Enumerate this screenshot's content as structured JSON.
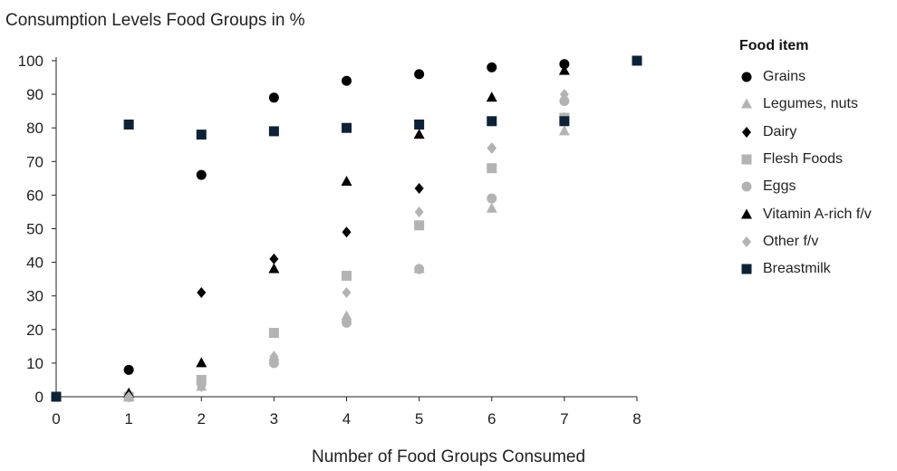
{
  "chart_data": {
    "type": "scatter",
    "title": "Consumption Levels Food Groups in %",
    "xlabel": "Number of Food Groups Consumed",
    "ylabel": "",
    "xlim": [
      0,
      8
    ],
    "ylim": [
      0,
      100
    ],
    "x_ticks": [
      "0",
      "1",
      "2",
      "3",
      "4",
      "5",
      "6",
      "7",
      "8"
    ],
    "y_ticks": [
      "0",
      "10",
      "20",
      "30",
      "40",
      "50",
      "60",
      "70",
      "80",
      "90",
      "100"
    ],
    "grid": false,
    "legend_title": "Food item",
    "legend_position": "right",
    "series": [
      {
        "name": "Grains",
        "marker": "circle",
        "color": "#000000",
        "x": [
          1,
          2,
          3,
          4,
          5,
          6,
          7
        ],
        "y": [
          8,
          66,
          89,
          94,
          96,
          98,
          99
        ]
      },
      {
        "name": "Legumes, nuts",
        "marker": "triangle",
        "color": "#b3b3b3",
        "x": [
          1,
          2,
          3,
          4,
          5,
          6,
          7
        ],
        "y": [
          0,
          3,
          12,
          24,
          38,
          56,
          79
        ]
      },
      {
        "name": "Dairy",
        "marker": "diamond",
        "color": "#000000",
        "x": [
          1,
          2,
          3,
          4,
          5,
          6,
          7
        ],
        "y": [
          0,
          31,
          41,
          49,
          62,
          74,
          83
        ]
      },
      {
        "name": "Flesh Foods",
        "marker": "square",
        "color": "#b3b3b3",
        "x": [
          1,
          2,
          3,
          4,
          5,
          6,
          7
        ],
        "y": [
          0,
          5,
          19,
          36,
          51,
          68,
          83
        ]
      },
      {
        "name": "Eggs",
        "marker": "circle",
        "color": "#b3b3b3",
        "x": [
          1,
          2,
          3,
          4,
          5,
          6,
          7
        ],
        "y": [
          0,
          4,
          10,
          22,
          38,
          59,
          88
        ]
      },
      {
        "name": "Vitamin A-rich f/v",
        "marker": "triangle",
        "color": "#000000",
        "x": [
          1,
          2,
          3,
          4,
          5,
          6,
          7
        ],
        "y": [
          1,
          10,
          38,
          64,
          78,
          89,
          97
        ]
      },
      {
        "name": "Other f/v",
        "marker": "diamond",
        "color": "#b3b3b3",
        "x": [
          1,
          2,
          3,
          4,
          5,
          6,
          7
        ],
        "y": [
          0,
          3,
          12,
          31,
          55,
          74,
          90
        ]
      },
      {
        "name": "Breastmilk",
        "marker": "square",
        "color": "#0d2235",
        "x": [
          0,
          1,
          2,
          3,
          4,
          5,
          6,
          7,
          8
        ],
        "y": [
          0,
          81,
          78,
          79,
          80,
          81,
          82,
          82,
          100
        ]
      }
    ]
  }
}
